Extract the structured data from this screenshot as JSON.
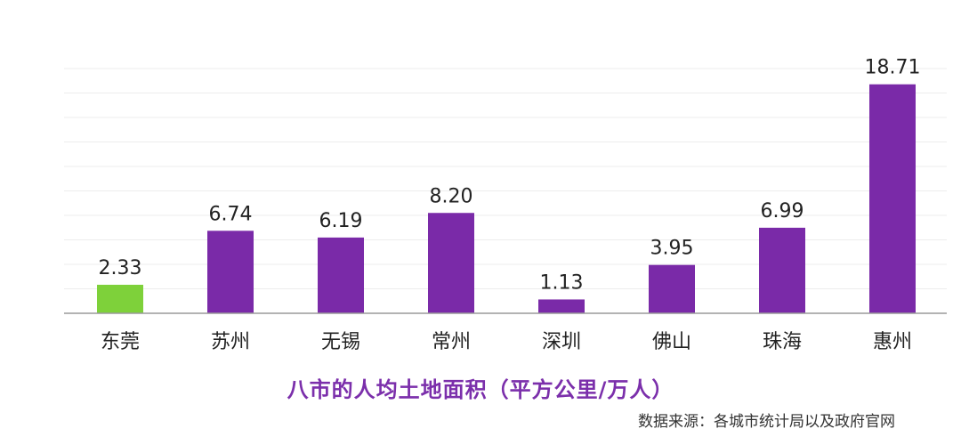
{
  "chart_data": {
    "type": "bar",
    "title": "八市的人均土地面积（平方公里/万人）",
    "source": "数据来源：各城市统计局以及政府官网",
    "categories": [
      "东莞",
      "苏州",
      "无锡",
      "常州",
      "深圳",
      "佛山",
      "珠海",
      "惠州"
    ],
    "values": [
      2.33,
      6.74,
      6.19,
      8.2,
      1.13,
      3.95,
      6.99,
      18.71
    ],
    "value_labels": [
      "2.33",
      "6.74",
      "6.19",
      "8.20",
      "1.13",
      "3.95",
      "6.99",
      "18.71"
    ],
    "highlight_category": "东莞",
    "ylim": [
      0,
      20
    ],
    "grid": true,
    "colors": {
      "highlight": "#7ed13a",
      "default": "#7a2aa8",
      "title": "#7b2fab"
    }
  }
}
